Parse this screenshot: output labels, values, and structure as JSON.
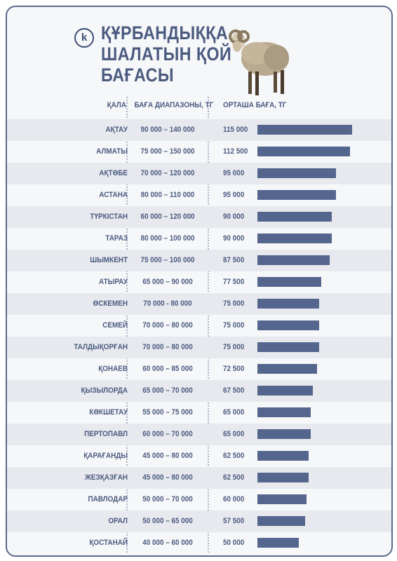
{
  "header": {
    "logo_letter": "k",
    "title_lines": [
      "ҚҰРБАНДЫҚҚА",
      "ШАЛАТЫН ҚОЙ",
      "БАҒАСЫ"
    ]
  },
  "colors": {
    "bar": "#55668e",
    "text": "#4b5b80",
    "stripe": "#e7e9ee"
  },
  "chart_data": {
    "type": "bar",
    "orientation": "horizontal",
    "columns": [
      "ҚАЛА",
      "БАҒА ДИАПАЗОНЫ, ТГ",
      "ОРТАША БАҒА, ТГ"
    ],
    "categories": [
      "АҚТАУ",
      "АЛМАТЫ",
      "АҚТӨБЕ",
      "АСТАНА",
      "ТҮРКІСТАН",
      "ТАРАЗ",
      "ШЫМКЕНТ",
      "АТЫРАУ",
      "ӨСКЕМЕН",
      "СЕМЕЙ",
      "ТАЛДЫҚОРҒАН",
      "ҚОНАЕВ",
      "ҚЫЗЫЛОРДА",
      "КӨКШЕТАУ",
      "ПЕРТОПАВЛ",
      "ҚАРАҒАНДЫ",
      "ЖЕЗҚАЗҒАН",
      "ПАВЛОДАР",
      "ОРАЛ",
      "ҚОСТАНАЙ"
    ],
    "ranges": [
      "90 000 – 140 000",
      "75 000 – 150 000",
      "70 000 – 120 000",
      "80 000 – 110 000",
      "60 000 – 120 000",
      "80 000 – 100 000",
      "75 000 – 100 000",
      "65 000 – 90 000",
      "70 000 - 80 000",
      "70 000 – 80 000",
      "70 000 – 80 000",
      "60 000 – 85 000",
      "65 000 – 70 000",
      "55 000 – 75 000",
      "60 000 – 70 000",
      "45 000 – 80 000",
      "45 000 – 80 000",
      "50 000 – 70 000",
      "50 000 – 65 000",
      "40 000 – 60 000"
    ],
    "values": [
      115000,
      112500,
      95000,
      95000,
      90000,
      90000,
      87500,
      77500,
      75000,
      75000,
      75000,
      72500,
      67500,
      65000,
      65000,
      62500,
      62500,
      60000,
      57500,
      50000
    ],
    "value_labels": [
      "115 000",
      "112 500",
      "95 000",
      "95 000",
      "90 000",
      "90 000",
      "87 500",
      "77 500",
      "75 000",
      "75 000",
      "75 000",
      "72 500",
      "67 500",
      "65 000",
      "65 000",
      "62 500",
      "62 500",
      "60 000",
      "57 500",
      "50 000"
    ],
    "xlim": [
      0,
      115000
    ],
    "grid": false
  }
}
